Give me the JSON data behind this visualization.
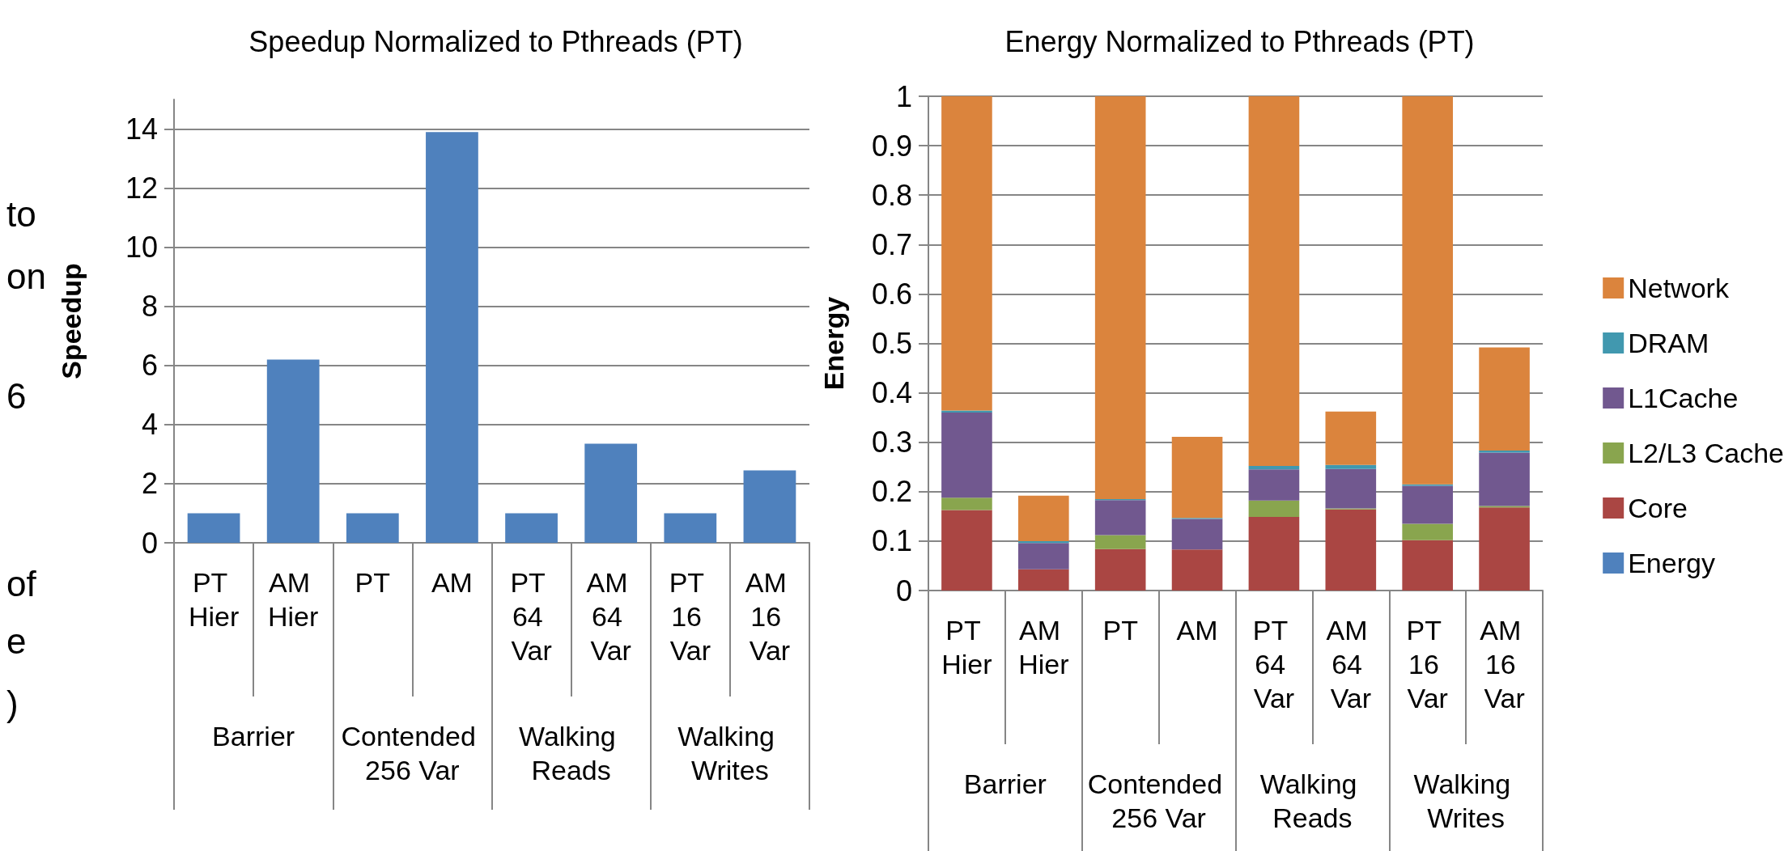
{
  "chart_data": [
    {
      "type": "other",
      "annotations": [
        "to",
        "on",
        "6",
        "of",
        "e",
        ")"
      ]
    },
    {
      "type": "bar",
      "title": "Speedup Normalized to Pthreads (PT)",
      "ylabel": "Speedup",
      "categories": [
        "PT Hier",
        "AM Hier",
        "PT",
        "AM",
        "PT 64 Var",
        "AM 64 Var",
        "PT 16 Var",
        "AM 16 Var"
      ],
      "values": [
        1,
        6.2,
        1,
        13.9,
        1,
        3.35,
        1,
        2.45
      ],
      "color": "#4f81bd",
      "ylim": [
        0,
        15
      ],
      "yticks": [
        0,
        2,
        4,
        6,
        8,
        10,
        12,
        14
      ],
      "grid": "y",
      "annotations": [
        "Barrier",
        "Contended 256 Var",
        "Walking Reads",
        "Walking Writes"
      ]
    },
    {
      "type": "bar",
      "title": "Energy Normalized to Pthreads (PT)",
      "ylabel": "Energy",
      "stacked": true,
      "legend": "right",
      "categories": [
        "PT Hier",
        "AM Hier",
        "PT",
        "AM",
        "PT 64 Var",
        "AM 64 Var",
        "PT 16 Var",
        "AM 16 Var"
      ],
      "series": [
        {
          "name": "Energy",
          "color": "#4f81bd",
          "values": [
            0,
            0,
            0,
            0,
            0,
            0,
            0,
            0
          ]
        },
        {
          "name": "Core",
          "color": "#aa4643",
          "values": [
            0.163,
            0.043,
            0.084,
            0.083,
            0.149,
            0.164,
            0.102,
            0.168
          ]
        },
        {
          "name": "L2/L3 Cache",
          "color": "#89a54e",
          "values": [
            0.025,
            0,
            0.028,
            0,
            0.033,
            0.002,
            0.033,
            0.003
          ]
        },
        {
          "name": "L1Cache",
          "color": "#71588f",
          "values": [
            0.172,
            0.053,
            0.071,
            0.062,
            0.063,
            0.08,
            0.077,
            0.108
          ]
        },
        {
          "name": "DRAM",
          "color": "#4198af",
          "values": [
            0.004,
            0.004,
            0.002,
            0.002,
            0.007,
            0.008,
            0.003,
            0.004
          ]
        },
        {
          "name": "Network",
          "color": "#db843d",
          "values": [
            0.636,
            0.092,
            0.815,
            0.164,
            0.748,
            0.108,
            0.785,
            0.209
          ]
        }
      ],
      "ylim": [
        0,
        1
      ],
      "yticks": [
        0,
        0.1,
        0.2,
        0.3,
        0.4,
        0.5,
        0.6,
        0.7,
        0.8,
        0.9,
        1
      ],
      "grid": "y",
      "annotations": [
        "Barrier",
        "Contended 256 Var",
        "Walking Reads",
        "Walking Writes"
      ]
    }
  ]
}
